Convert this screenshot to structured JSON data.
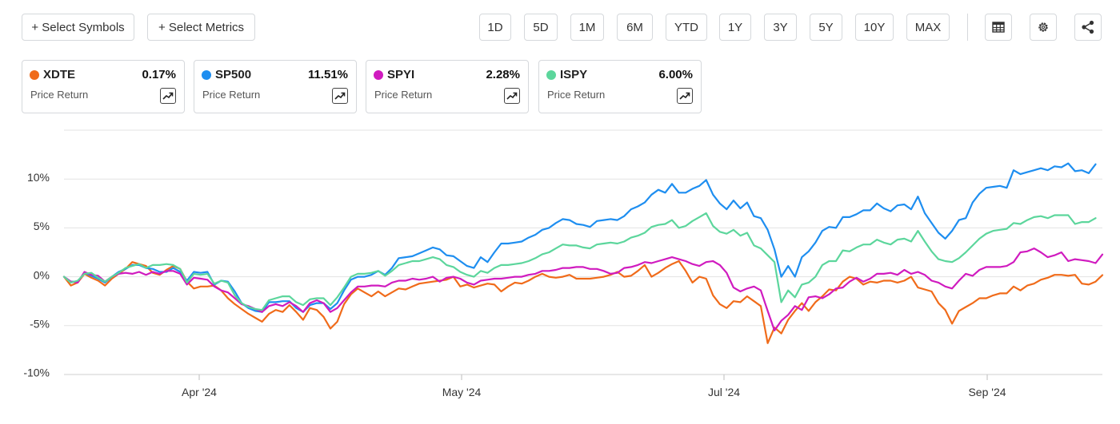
{
  "toolbar": {
    "select_symbols": "+ Select Symbols",
    "select_metrics": "+ Select Metrics",
    "ranges": [
      "1D",
      "5D",
      "1M",
      "6M",
      "YTD",
      "1Y",
      "3Y",
      "5Y",
      "10Y",
      "MAX"
    ],
    "icons": [
      "table-icon",
      "gear-icon",
      "share-icon"
    ]
  },
  "cards": [
    {
      "symbol": "XDTE",
      "value": "0.17%",
      "metric": "Price Return",
      "color": "#f06b1a"
    },
    {
      "symbol": "SP500",
      "value": "11.51%",
      "metric": "Price Return",
      "color": "#1e8ef0"
    },
    {
      "symbol": "SPYI",
      "value": "2.28%",
      "metric": "Price Return",
      "color": "#d01bbf"
    },
    {
      "symbol": "ISPY",
      "value": "6.00%",
      "metric": "Price Return",
      "color": "#5cd69c"
    }
  ],
  "chart_data": {
    "type": "line",
    "x_ticks": [
      "Apr '24",
      "May '24",
      "Jul '24",
      "Sep '24"
    ],
    "y_ticks": [
      "10%",
      "5%",
      "0%",
      "-5%",
      "-10%"
    ],
    "ylim": [
      -10,
      15
    ],
    "grid": "horizontal",
    "series": [
      {
        "name": "XDTE",
        "color": "#f06b1a",
        "values": [
          0,
          -0.9,
          -0.6,
          0.3,
          -0.1,
          -0.4,
          -0.9,
          -0.2,
          0.3,
          0.8,
          1.5,
          1.3,
          1.1,
          0.4,
          0.2,
          0.7,
          1.1,
          0.8,
          -0.5,
          -1.2,
          -1.0,
          -1.0,
          -0.9,
          -1.4,
          -2.2,
          -2.8,
          -3.3,
          -3.8,
          -4.2,
          -4.6,
          -3.8,
          -3.4,
          -3.6,
          -2.9,
          -3.6,
          -4.4,
          -3.2,
          -3.4,
          -4.1,
          -5.3,
          -4.6,
          -2.8,
          -1.8,
          -1.2,
          -1.6,
          -2.0,
          -1.5,
          -2.0,
          -1.6,
          -1.2,
          -1.3,
          -1.0,
          -0.7,
          -0.6,
          -0.5,
          -0.4,
          -0.3,
          0.0,
          -1.0,
          -0.8,
          -1.1,
          -0.9,
          -0.7,
          -0.8,
          -1.5,
          -1.0,
          -0.6,
          -0.7,
          -0.4,
          0.0,
          0.3,
          0.0,
          -0.1,
          0.0,
          0.2,
          -0.2,
          -0.2,
          -0.2,
          -0.1,
          0.0,
          0.2,
          0.5,
          0.0,
          0.1,
          0.6,
          1.2,
          0.0,
          0.4,
          0.9,
          1.3,
          1.6,
          0.6,
          -0.6,
          0.0,
          -0.2,
          -1.9,
          -2.8,
          -3.2,
          -2.5,
          -2.6,
          -2.0,
          -2.5,
          -3.0,
          -6.8,
          -5.2,
          -5.8,
          -4.4,
          -3.5,
          -2.7,
          -3.5,
          -2.6,
          -2.0,
          -1.3,
          -1.4,
          -0.5,
          0.0,
          -0.2,
          -0.8,
          -0.5,
          -0.6,
          -0.4,
          -0.4,
          -0.6,
          -0.4,
          0.0,
          -1.1,
          -1.3,
          -1.5,
          -2.7,
          -3.4,
          -4.8,
          -3.5,
          -3.1,
          -2.7,
          -2.2,
          -2.2,
          -1.9,
          -1.7,
          -1.7,
          -1.0,
          -1.4,
          -0.9,
          -0.7,
          -0.3,
          -0.1,
          0.2,
          0.2,
          0.1,
          0.2,
          -0.7,
          -0.8,
          -0.5,
          0.17
        ]
      },
      {
        "name": "SP500",
        "color": "#1e8ef0",
        "values": [
          0,
          -0.5,
          -0.5,
          0.4,
          0.1,
          -0.2,
          -0.6,
          0.0,
          0.5,
          0.8,
          1.2,
          1.2,
          0.9,
          0.8,
          0.5,
          0.5,
          0.9,
          0.5,
          -0.4,
          0.5,
          0.4,
          0.5,
          -0.8,
          -0.4,
          -0.5,
          -1.5,
          -2.7,
          -3.2,
          -3.5,
          -3.6,
          -2.6,
          -2.6,
          -2.5,
          -2.5,
          -3.2,
          -3.6,
          -2.9,
          -2.7,
          -2.7,
          -3.3,
          -2.7,
          -1.4,
          -0.3,
          0.0,
          0.0,
          0.2,
          0.6,
          0.2,
          0.9,
          1.9,
          2.0,
          2.1,
          2.4,
          2.7,
          3.0,
          2.8,
          2.2,
          2.1,
          1.6,
          1.1,
          0.9,
          2.0,
          1.5,
          2.5,
          3.4,
          3.4,
          3.5,
          3.6,
          4.0,
          4.3,
          4.8,
          5.0,
          5.5,
          5.9,
          5.8,
          5.4,
          5.3,
          5.1,
          5.7,
          5.8,
          5.9,
          5.8,
          6.2,
          6.9,
          7.2,
          7.6,
          8.4,
          8.9,
          8.6,
          9.5,
          8.6,
          8.6,
          9.0,
          9.3,
          9.9,
          8.4,
          7.5,
          6.9,
          7.8,
          7.0,
          7.6,
          6.2,
          6.0,
          4.8,
          2.8,
          0.0,
          1.1,
          0.0,
          2.0,
          2.6,
          3.5,
          4.7,
          5.1,
          5.0,
          6.1,
          6.1,
          6.4,
          6.8,
          6.8,
          7.5,
          7.0,
          6.7,
          7.3,
          7.4,
          6.9,
          8.2,
          6.5,
          5.5,
          4.5,
          3.9,
          4.7,
          5.8,
          6.0,
          7.6,
          8.5,
          9.1,
          9.2,
          9.3,
          9.1,
          10.9,
          10.5,
          10.7,
          10.9,
          11.1,
          10.9,
          11.3,
          11.2,
          11.6,
          10.8,
          10.9,
          10.6,
          11.51
        ]
      },
      {
        "name": "SPYI",
        "color": "#d01bbf",
        "values": [
          0,
          -0.5,
          -0.6,
          0.5,
          0.2,
          0.1,
          -0.5,
          0.0,
          0.3,
          0.4,
          0.3,
          0.5,
          0.2,
          0.5,
          0.3,
          0.6,
          0.6,
          0.3,
          -0.8,
          -0.1,
          -0.2,
          -0.3,
          -1.0,
          -1.4,
          -1.6,
          -2.2,
          -2.8,
          -3.0,
          -3.3,
          -3.6,
          -3.0,
          -2.8,
          -3.0,
          -2.6,
          -3.0,
          -3.6,
          -2.7,
          -2.4,
          -2.7,
          -3.6,
          -3.2,
          -2.4,
          -1.6,
          -1.0,
          -1.0,
          -0.9,
          -0.9,
          -1.0,
          -0.6,
          -0.4,
          -0.4,
          -0.2,
          -0.3,
          -0.2,
          0.0,
          -0.5,
          -0.1,
          0.0,
          -0.2,
          -0.6,
          -0.8,
          -0.4,
          -0.3,
          -0.2,
          -0.2,
          -0.1,
          0.0,
          0.0,
          0.2,
          0.3,
          0.6,
          0.6,
          0.7,
          0.9,
          0.9,
          1.0,
          1.0,
          0.8,
          0.8,
          0.6,
          0.3,
          0.4,
          0.9,
          1.0,
          1.2,
          1.5,
          1.4,
          1.6,
          1.8,
          2.0,
          1.8,
          1.6,
          1.3,
          1.1,
          1.5,
          1.6,
          1.2,
          0.4,
          -1.1,
          -1.5,
          -1.2,
          -1.0,
          -1.4,
          -3.5,
          -5.5,
          -4.5,
          -3.9,
          -3.0,
          -3.4,
          -2.1,
          -2.0,
          -2.2,
          -1.8,
          -1.2,
          -1.1,
          -0.5,
          -0.1,
          -0.5,
          -0.2,
          0.3,
          0.3,
          0.4,
          0.2,
          0.7,
          0.3,
          0.5,
          0.2,
          -0.4,
          -0.6,
          -1.0,
          -1.2,
          -0.4,
          0.3,
          0.1,
          0.7,
          1.0,
          1.0,
          1.0,
          1.1,
          1.5,
          2.5,
          2.6,
          2.9,
          2.5,
          2.0,
          2.2,
          2.5,
          1.6,
          1.8,
          1.7,
          1.6,
          1.4,
          2.28
        ]
      },
      {
        "name": "ISPY",
        "color": "#5cd69c",
        "values": [
          0,
          -0.6,
          -0.4,
          0.3,
          0.4,
          -0.1,
          -0.5,
          0.0,
          0.4,
          0.9,
          1.1,
          1.3,
          0.9,
          1.2,
          1.2,
          1.3,
          1.2,
          0.8,
          -0.6,
          0.3,
          0.2,
          0.3,
          -0.7,
          -0.4,
          -0.6,
          -1.9,
          -2.7,
          -3.1,
          -3.3,
          -3.4,
          -2.4,
          -2.2,
          -2.0,
          -2.0,
          -2.6,
          -2.9,
          -2.3,
          -2.2,
          -2.2,
          -2.9,
          -2.1,
          -1.1,
          0.0,
          0.3,
          0.3,
          0.4,
          0.6,
          0.1,
          0.6,
          1.2,
          1.4,
          1.6,
          1.6,
          1.8,
          2.0,
          1.8,
          1.2,
          1.0,
          0.5,
          0.2,
          0.0,
          0.6,
          0.4,
          0.9,
          1.2,
          1.2,
          1.3,
          1.4,
          1.6,
          1.9,
          2.3,
          2.5,
          2.9,
          3.3,
          3.2,
          3.2,
          3.0,
          2.9,
          3.3,
          3.4,
          3.5,
          3.4,
          3.6,
          4.0,
          4.2,
          4.5,
          5.1,
          5.3,
          5.4,
          5.8,
          5.0,
          5.2,
          5.7,
          6.1,
          6.5,
          5.2,
          4.6,
          4.4,
          4.8,
          4.2,
          4.5,
          3.2,
          2.9,
          2.2,
          1.5,
          -2.6,
          -1.4,
          -2.1,
          -0.8,
          -0.6,
          0.0,
          1.2,
          1.6,
          1.6,
          2.7,
          2.6,
          3.0,
          3.3,
          3.3,
          3.8,
          3.5,
          3.3,
          3.8,
          3.9,
          3.6,
          4.7,
          3.6,
          2.6,
          1.8,
          1.6,
          1.5,
          1.9,
          2.5,
          3.2,
          3.9,
          4.4,
          4.7,
          4.8,
          4.9,
          5.5,
          5.4,
          5.8,
          6.1,
          6.2,
          6.0,
          6.3,
          6.3,
          6.3,
          5.4,
          5.6,
          5.6,
          6.0
        ]
      }
    ]
  }
}
